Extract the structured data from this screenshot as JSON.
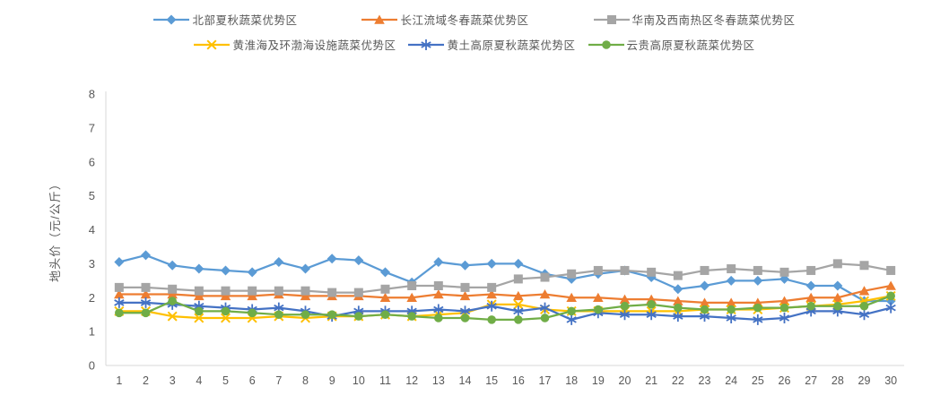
{
  "chart_data": {
    "type": "line",
    "title": "",
    "xlabel": "",
    "ylabel": "地头价（元/公斤）",
    "ylim": [
      0,
      8
    ],
    "yticks": [
      0,
      1,
      2,
      3,
      4,
      5,
      6,
      7,
      8
    ],
    "x": [
      1,
      2,
      3,
      4,
      5,
      6,
      7,
      8,
      9,
      10,
      11,
      12,
      13,
      14,
      15,
      16,
      17,
      18,
      19,
      20,
      21,
      22,
      23,
      24,
      25,
      26,
      27,
      28,
      29,
      30
    ],
    "grid": false,
    "legend_position": "top",
    "axis_color": "#D9D9D9",
    "tick_label_color": "#595959",
    "series": [
      {
        "name": "北部夏秋蔬菜优势区",
        "color": "#5B9BD5",
        "marker": "diamond",
        "values": [
          3.05,
          3.25,
          2.95,
          2.85,
          2.8,
          2.75,
          3.05,
          2.85,
          3.15,
          3.1,
          2.75,
          2.45,
          3.05,
          2.95,
          3.0,
          3.0,
          2.7,
          2.55,
          2.7,
          2.8,
          2.6,
          2.25,
          2.35,
          2.5,
          2.5,
          2.55,
          2.35,
          2.35,
          1.9,
          1.9
        ]
      },
      {
        "name": "长江流域冬春蔬菜优势区",
        "color": "#ED7D31",
        "marker": "triangle",
        "values": [
          2.1,
          2.1,
          2.1,
          2.05,
          2.05,
          2.05,
          2.1,
          2.05,
          2.05,
          2.05,
          2.0,
          2.0,
          2.1,
          2.05,
          2.1,
          2.05,
          2.1,
          2.0,
          2.0,
          1.95,
          1.95,
          1.9,
          1.85,
          1.85,
          1.85,
          1.9,
          2.0,
          2.0,
          2.2,
          2.35
        ]
      },
      {
        "name": "华南及西南热区冬春蔬菜优势区",
        "color": "#A5A5A5",
        "marker": "square",
        "values": [
          2.3,
          2.3,
          2.25,
          2.2,
          2.2,
          2.2,
          2.2,
          2.2,
          2.15,
          2.15,
          2.25,
          2.35,
          2.35,
          2.3,
          2.3,
          2.55,
          2.6,
          2.7,
          2.8,
          2.8,
          2.75,
          2.65,
          2.8,
          2.85,
          2.8,
          2.75,
          2.8,
          3.0,
          2.95,
          2.8
        ]
      },
      {
        "name": "黄淮海及环渤海设施蔬菜优势区",
        "color": "#FFC000",
        "marker": "x",
        "values": [
          1.6,
          1.6,
          1.45,
          1.4,
          1.4,
          1.4,
          1.45,
          1.4,
          1.45,
          1.45,
          1.5,
          1.45,
          1.5,
          1.55,
          1.8,
          1.8,
          1.65,
          1.6,
          1.6,
          1.6,
          1.6,
          1.6,
          1.65,
          1.65,
          1.65,
          1.7,
          1.75,
          1.8,
          1.9,
          2.05
        ]
      },
      {
        "name": "黄土高原夏秋蔬菜优势区",
        "color": "#4472C4",
        "marker": "asterisk",
        "values": [
          1.85,
          1.85,
          1.8,
          1.75,
          1.7,
          1.65,
          1.7,
          1.6,
          1.45,
          1.6,
          1.6,
          1.6,
          1.65,
          1.6,
          1.75,
          1.6,
          1.7,
          1.35,
          1.55,
          1.5,
          1.5,
          1.45,
          1.45,
          1.4,
          1.35,
          1.4,
          1.6,
          1.6,
          1.5,
          1.7
        ]
      },
      {
        "name": "云贵高原夏秋蔬菜优势区",
        "color": "#70AD47",
        "marker": "circle",
        "values": [
          1.55,
          1.55,
          1.9,
          1.6,
          1.6,
          1.55,
          1.5,
          1.5,
          1.5,
          1.45,
          1.5,
          1.45,
          1.4,
          1.4,
          1.35,
          1.35,
          1.4,
          1.6,
          1.65,
          1.75,
          1.8,
          1.7,
          1.65,
          1.65,
          1.7,
          1.7,
          1.75,
          1.75,
          1.75,
          2.05
        ]
      }
    ]
  }
}
